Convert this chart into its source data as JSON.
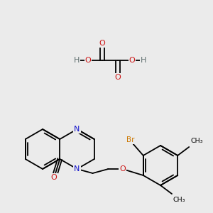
{
  "background_color": "#ebebeb",
  "atom_colors": {
    "C": "#000000",
    "N": "#1414cc",
    "O": "#cc1414",
    "Br": "#cc7700",
    "H": "#607070"
  },
  "figsize": [
    3.0,
    3.0
  ],
  "dpi": 100
}
